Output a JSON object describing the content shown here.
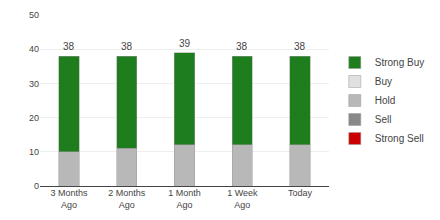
{
  "chart_data": {
    "type": "bar",
    "stacked": true,
    "categories": [
      "3 Months\nAgo",
      "2 Months\nAgo",
      "1 Month\nAgo",
      "1 Week\nAgo",
      "Today"
    ],
    "series": [
      {
        "name": "Strong Sell",
        "color": "#cc0000",
        "values": [
          0,
          0,
          0,
          0,
          0
        ]
      },
      {
        "name": "Sell",
        "color": "#888888",
        "values": [
          0,
          0,
          0,
          0,
          0
        ]
      },
      {
        "name": "Hold",
        "color": "#b8b8b8",
        "values": [
          10,
          11,
          12,
          12,
          12
        ]
      },
      {
        "name": "Buy",
        "color": "#e0e0e0",
        "values": [
          0,
          0,
          0,
          0,
          0
        ]
      },
      {
        "name": "Strong Buy",
        "color": "#1e7e1e",
        "values": [
          28,
          27,
          27,
          26,
          26
        ]
      }
    ],
    "totals": [
      38,
      38,
      39,
      38,
      38
    ],
    "ylim": [
      0,
      50
    ],
    "yticks": [
      0,
      10,
      20,
      30,
      40,
      50
    ],
    "grid": true,
    "legend": "right"
  }
}
